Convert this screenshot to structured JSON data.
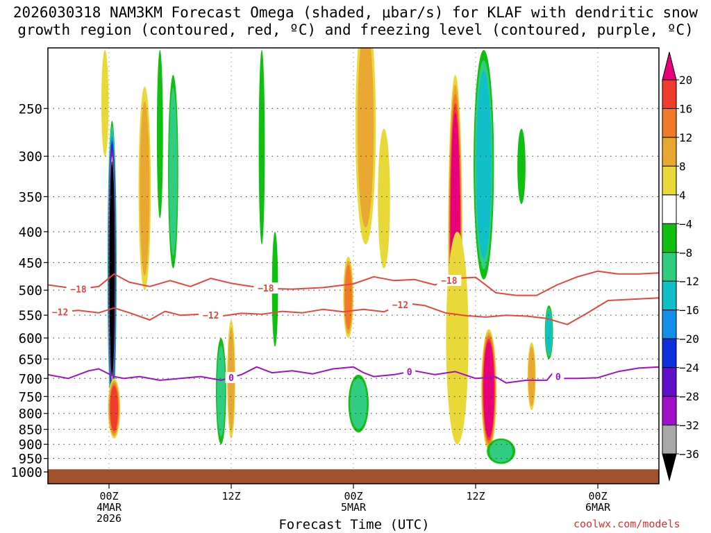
{
  "title_line1": "2026030318 NAM3KM Forecast Omega (shaded, μbar/s) for KLAF with dendritic snow",
  "title_line2": "growth region (contoured, red, ºC) and freezing level (contoured, purple, ºC)",
  "credit": "coolwx.com/models",
  "chart_data": {
    "type": "heatmap",
    "title": "2026030318 NAM3KM Forecast Omega (shaded, μbar/s) for KLAF with dendritic snow growth region (contoured, red, ºC) and freezing level (contoured, purple, ºC)",
    "xlabel": "Forecast Time (UTC)",
    "ylabel": "",
    "x_unit": "hours from 2026030318",
    "xlim": [
      0,
      60
    ],
    "ylim": [
      1000,
      200
    ],
    "yscale": "log",
    "y_ticks": [
      250,
      300,
      350,
      400,
      450,
      500,
      550,
      600,
      650,
      700,
      750,
      800,
      850,
      900,
      950,
      1000
    ],
    "x_ticks": [
      {
        "hour": 6,
        "lines": [
          "00Z",
          "4MAR",
          "2026"
        ]
      },
      {
        "hour": 18,
        "lines": [
          "12Z"
        ]
      },
      {
        "hour": 30,
        "lines": [
          "00Z",
          "5MAR"
        ]
      },
      {
        "hour": 42,
        "lines": [
          "12Z"
        ]
      },
      {
        "hour": 54,
        "lines": [
          "00Z",
          "6MAR"
        ]
      }
    ],
    "colorbar": {
      "labels": [
        "20",
        "16",
        "12",
        "8",
        "4",
        "−4",
        "−8",
        "−12",
        "−16",
        "−20",
        "−24",
        "−28",
        "−32",
        "−36"
      ],
      "levels": [
        20,
        16,
        12,
        8,
        4,
        -4,
        -8,
        -12,
        -16,
        -20,
        -24,
        -28,
        -32,
        -36
      ],
      "colors": [
        "#e8007a",
        "#f03c2c",
        "#f07a28",
        "#e8a832",
        "#e8d838",
        "#ffffff",
        "#10c010",
        "#30cc80",
        "#10c0c8",
        "#1090e8",
        "#1030e0",
        "#6010c8",
        "#a010c8",
        "#a8a8a8",
        "#000000"
      ]
    },
    "terrain_color": "#a0522d",
    "terrain_pressure": 990,
    "omega_features": [
      {
        "hour": 6.3,
        "p_top": 262,
        "p_bot": 810,
        "half_width_h": 0.45,
        "value": -40
      },
      {
        "hour": 6.5,
        "p_top": 700,
        "p_bot": 880,
        "half_width_h": 0.6,
        "value": 16
      },
      {
        "hour": 5.6,
        "p_top": 200,
        "p_bot": 300,
        "half_width_h": 0.35,
        "value": 6
      },
      {
        "hour": 9.5,
        "p_top": 230,
        "p_bot": 500,
        "half_width_h": 0.6,
        "value": 8
      },
      {
        "hour": 11.0,
        "p_top": 200,
        "p_bot": 380,
        "half_width_h": 0.3,
        "value": -7
      },
      {
        "hour": 12.3,
        "p_top": 220,
        "p_bot": 460,
        "half_width_h": 0.5,
        "value": -9
      },
      {
        "hour": 18.0,
        "p_top": 560,
        "p_bot": 880,
        "half_width_h": 0.4,
        "value": 9
      },
      {
        "hour": 17.0,
        "p_top": 600,
        "p_bot": 900,
        "half_width_h": 0.5,
        "value": -8
      },
      {
        "hour": 21.0,
        "p_top": 200,
        "p_bot": 420,
        "half_width_h": 0.3,
        "value": -6
      },
      {
        "hour": 22.3,
        "p_top": 400,
        "p_bot": 620,
        "half_width_h": 0.3,
        "value": -6
      },
      {
        "hour": 29.5,
        "p_top": 440,
        "p_bot": 600,
        "half_width_h": 0.5,
        "value": 12
      },
      {
        "hour": 31.2,
        "p_top": 170,
        "p_bot": 420,
        "half_width_h": 1.0,
        "value": 8
      },
      {
        "hour": 33.0,
        "p_top": 270,
        "p_bot": 460,
        "half_width_h": 0.6,
        "value": 6
      },
      {
        "hour": 30.5,
        "p_top": 690,
        "p_bot": 860,
        "half_width_h": 1.0,
        "value": -10
      },
      {
        "hour": 40.0,
        "p_top": 220,
        "p_bot": 800,
        "half_width_h": 0.7,
        "value": 24
      },
      {
        "hour": 40.2,
        "p_top": 400,
        "p_bot": 900,
        "half_width_h": 1.1,
        "value": 7
      },
      {
        "hour": 42.8,
        "p_top": 200,
        "p_bot": 480,
        "half_width_h": 1.0,
        "value": -14
      },
      {
        "hour": 43.3,
        "p_top": 580,
        "p_bot": 920,
        "half_width_h": 0.75,
        "value": 26
      },
      {
        "hour": 44.5,
        "p_top": 880,
        "p_bot": 970,
        "half_width_h": 1.4,
        "value": -9
      },
      {
        "hour": 47.5,
        "p_top": 610,
        "p_bot": 790,
        "half_width_h": 0.4,
        "value": 10
      },
      {
        "hour": 49.2,
        "p_top": 530,
        "p_bot": 650,
        "half_width_h": 0.4,
        "value": -13
      },
      {
        "hour": 46.5,
        "p_top": 270,
        "p_bot": 360,
        "half_width_h": 0.4,
        "value": -6
      }
    ],
    "contours": [
      {
        "name": "−18",
        "label": "−18",
        "color": "#e8453c",
        "label_hours": [
          3.0,
          21.4,
          39.4
        ],
        "x": [
          0,
          3,
          5,
          6.5,
          8,
          10,
          12,
          14,
          16,
          18,
          20,
          22,
          24,
          27,
          30,
          32,
          34,
          36,
          38,
          40,
          42,
          44,
          46,
          48,
          50,
          52,
          54,
          56,
          58,
          60
        ],
        "p": [
          490,
          498,
          493,
          470,
          485,
          493,
          482,
          493,
          478,
          487,
          493,
          497,
          498,
          495,
          488,
          475,
          482,
          480,
          490,
          478,
          476,
          505,
          510,
          510,
          490,
          475,
          465,
          470,
          470,
          468
        ]
      },
      {
        "name": "−12",
        "label": "−12",
        "color": "#e8453c",
        "label_hours": [
          1.2,
          16.0,
          34.6
        ],
        "x": [
          0,
          3,
          5,
          6.5,
          8,
          10,
          11.5,
          13,
          15,
          17,
          19,
          21,
          23,
          25,
          27,
          29,
          31,
          33,
          35,
          37,
          39,
          41,
          43,
          45,
          47,
          49,
          51,
          53,
          55,
          57,
          60
        ],
        "p": [
          545,
          540,
          545,
          535,
          545,
          560,
          542,
          550,
          548,
          552,
          546,
          548,
          542,
          545,
          538,
          543,
          538,
          543,
          525,
          530,
          545,
          551,
          554,
          550,
          552,
          557,
          570,
          545,
          520,
          518,
          515
        ]
      },
      {
        "name": "0",
        "label": "0",
        "color": "#a010c8",
        "label_hours": [
          18.0,
          35.5,
          50.1
        ],
        "x": [
          0,
          2,
          4,
          5,
          6.5,
          7.5,
          9,
          11,
          13,
          15,
          17,
          19,
          20.5,
          22,
          24,
          26,
          28,
          30,
          31,
          32,
          34,
          36,
          38,
          40,
          42,
          44,
          45,
          47,
          49,
          49.5,
          50.5,
          52,
          54,
          56,
          58,
          60
        ],
        "p": [
          690,
          700,
          680,
          675,
          695,
          700,
          695,
          705,
          700,
          695,
          705,
          690,
          670,
          685,
          680,
          688,
          675,
          670,
          685,
          695,
          690,
          680,
          690,
          682,
          700,
          696,
          712,
          705,
          705,
          688,
          700,
          700,
          698,
          682,
          673,
          670
        ]
      }
    ]
  }
}
